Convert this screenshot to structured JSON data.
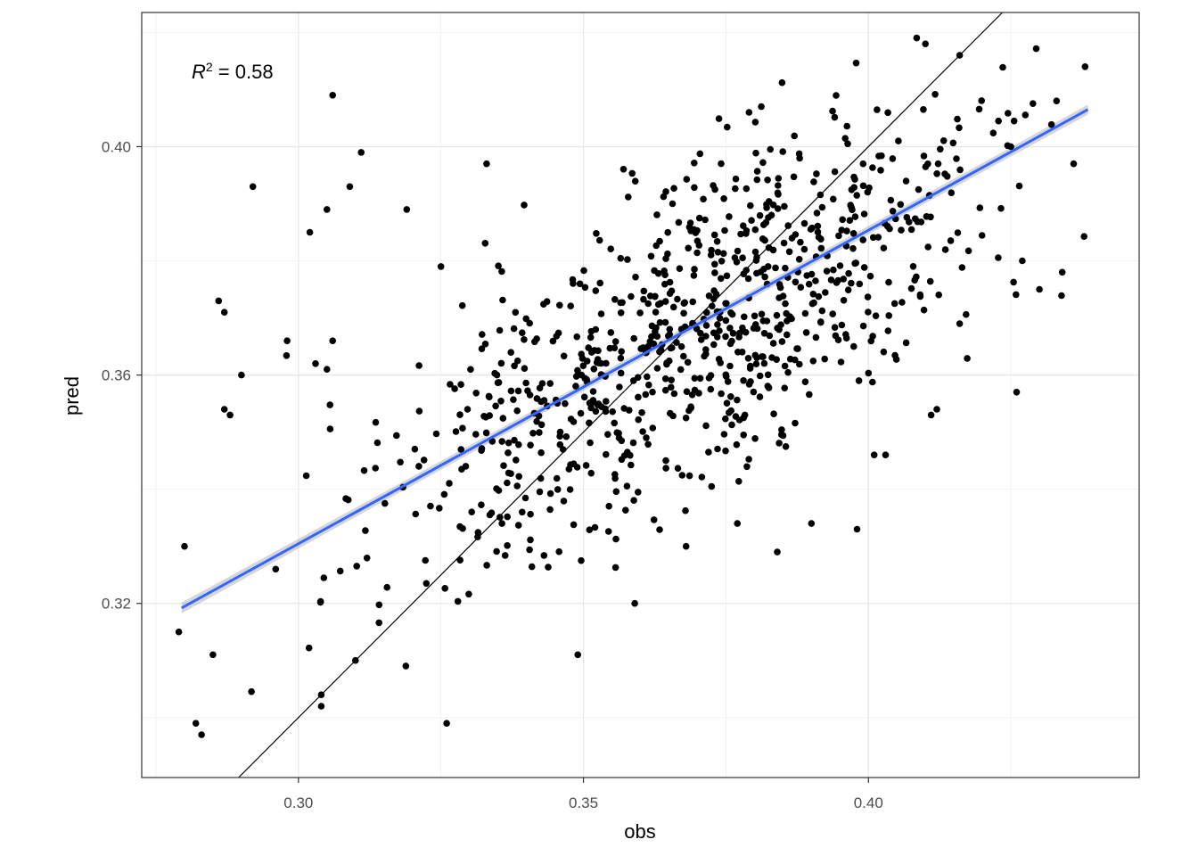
{
  "chart_data": {
    "type": "scatter",
    "title": "",
    "xlabel": "obs",
    "ylabel": "pred",
    "xlim": [
      0.2725,
      0.4475
    ],
    "ylim": [
      0.2895,
      0.4235
    ],
    "x_ticks": [
      0.3,
      0.35,
      0.4
    ],
    "x_tick_labels": [
      "0.30",
      "0.35",
      "0.40"
    ],
    "y_ticks": [
      0.32,
      0.36,
      0.4
    ],
    "y_tick_labels": [
      "0.32",
      "0.36",
      "0.40"
    ],
    "grid": true,
    "annotation": {
      "symbol": "R",
      "superscript": "2",
      "text": " = 0.58",
      "r_squared": 0.58
    },
    "points_estimated_count": 900,
    "points_sample": [
      [
        0.28,
        0.33
      ],
      [
        0.279,
        0.315
      ],
      [
        0.282,
        0.299
      ],
      [
        0.283,
        0.297
      ],
      [
        0.285,
        0.311
      ],
      [
        0.286,
        0.373
      ],
      [
        0.287,
        0.371
      ],
      [
        0.287,
        0.354
      ],
      [
        0.288,
        0.353
      ],
      [
        0.29,
        0.36
      ],
      [
        0.292,
        0.393
      ],
      [
        0.298,
        0.366
      ],
      [
        0.302,
        0.385
      ],
      [
        0.305,
        0.389
      ],
      [
        0.306,
        0.409
      ],
      [
        0.309,
        0.393
      ],
      [
        0.311,
        0.399
      ],
      [
        0.319,
        0.389
      ],
      [
        0.325,
        0.379
      ],
      [
        0.333,
        0.397
      ],
      [
        0.306,
        0.366
      ],
      [
        0.303,
        0.362
      ],
      [
        0.305,
        0.361
      ],
      [
        0.296,
        0.326
      ],
      [
        0.304,
        0.304
      ],
      [
        0.304,
        0.302
      ],
      [
        0.326,
        0.299
      ],
      [
        0.349,
        0.311
      ],
      [
        0.359,
        0.32
      ],
      [
        0.31,
        0.31
      ],
      [
        0.39,
        0.334
      ],
      [
        0.398,
        0.333
      ],
      [
        0.401,
        0.346
      ],
      [
        0.403,
        0.346
      ],
      [
        0.426,
        0.357
      ],
      [
        0.411,
        0.353
      ],
      [
        0.412,
        0.354
      ],
      [
        0.416,
        0.369
      ],
      [
        0.41,
        0.418
      ],
      [
        0.416,
        0.416
      ],
      [
        0.438,
        0.414
      ],
      [
        0.433,
        0.408
      ],
      [
        0.436,
        0.397
      ],
      [
        0.425,
        0.4
      ],
      [
        0.427,
        0.38
      ],
      [
        0.43,
        0.375
      ],
      [
        0.434,
        0.378
      ],
      [
        0.384,
        0.329
      ],
      [
        0.377,
        0.334
      ],
      [
        0.368,
        0.33
      ]
    ],
    "series": [
      {
        "kind": "scatter",
        "color": "#000000"
      },
      {
        "kind": "regression",
        "color": "#3366FF",
        "band_color": "#999999",
        "x_range": [
          0.2795,
          0.4385
        ],
        "y_range": [
          0.3192,
          0.4065
        ]
      },
      {
        "kind": "identity",
        "color": "#000000",
        "slope": 1,
        "intercept": 0
      }
    ]
  }
}
